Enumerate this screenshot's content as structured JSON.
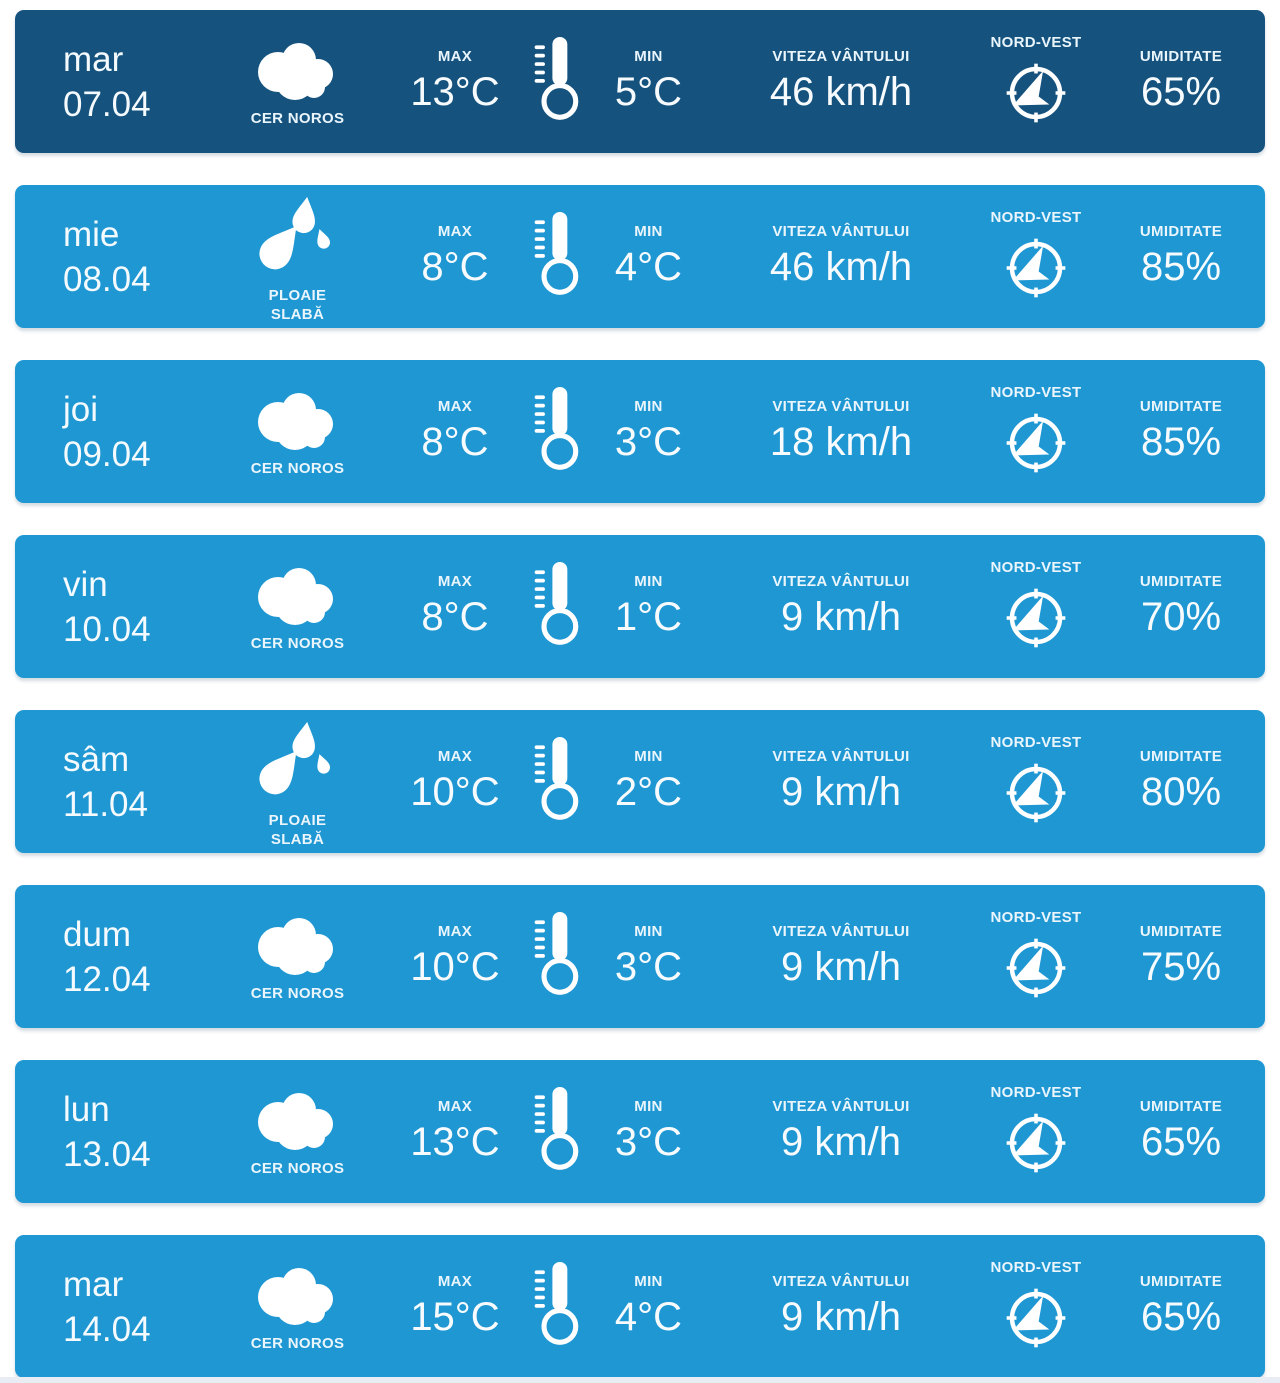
{
  "colors": {
    "row_dark": "#15537E",
    "row_light": "#1E97D3",
    "text": "#ffffff"
  },
  "labels": {
    "max": "MAX",
    "min": "MIN",
    "wind": "VITEZA VÂNTULUI",
    "humidity": "UMIDITATE"
  },
  "rows": [
    {
      "variant": "dark",
      "day": "mar",
      "date": "07.04",
      "condition_icon": "cloud",
      "condition_lines": [
        "CER NOROS"
      ],
      "max": "13°C",
      "min": "5°C",
      "wind_speed": "46 km/h",
      "wind_direction": "NORD-VEST",
      "humidity": "65%"
    },
    {
      "variant": "light",
      "day": "mie",
      "date": "08.04",
      "condition_icon": "rain",
      "condition_lines": [
        "PLOAIE",
        "SLABĂ"
      ],
      "max": "8°C",
      "min": "4°C",
      "wind_speed": "46 km/h",
      "wind_direction": "NORD-VEST",
      "humidity": "85%"
    },
    {
      "variant": "light",
      "day": "joi",
      "date": "09.04",
      "condition_icon": "cloud",
      "condition_lines": [
        "CER NOROS"
      ],
      "max": "8°C",
      "min": "3°C",
      "wind_speed": "18 km/h",
      "wind_direction": "NORD-VEST",
      "humidity": "85%"
    },
    {
      "variant": "light",
      "day": "vin",
      "date": "10.04",
      "condition_icon": "cloud",
      "condition_lines": [
        "CER NOROS"
      ],
      "max": "8°C",
      "min": "1°C",
      "wind_speed": "9 km/h",
      "wind_direction": "NORD-VEST",
      "humidity": "70%"
    },
    {
      "variant": "light",
      "day": "sâm",
      "date": "11.04",
      "condition_icon": "rain",
      "condition_lines": [
        "PLOAIE",
        "SLABĂ"
      ],
      "max": "10°C",
      "min": "2°C",
      "wind_speed": "9 km/h",
      "wind_direction": "NORD-VEST",
      "humidity": "80%"
    },
    {
      "variant": "light",
      "day": "dum",
      "date": "12.04",
      "condition_icon": "cloud",
      "condition_lines": [
        "CER NOROS"
      ],
      "max": "10°C",
      "min": "3°C",
      "wind_speed": "9 km/h",
      "wind_direction": "NORD-VEST",
      "humidity": "75%"
    },
    {
      "variant": "light",
      "day": "lun",
      "date": "13.04",
      "condition_icon": "cloud",
      "condition_lines": [
        "CER NOROS"
      ],
      "max": "13°C",
      "min": "3°C",
      "wind_speed": "9 km/h",
      "wind_direction": "NORD-VEST",
      "humidity": "65%"
    },
    {
      "variant": "light",
      "day": "mar",
      "date": "14.04",
      "condition_icon": "cloud",
      "condition_lines": [
        "CER NOROS"
      ],
      "max": "15°C",
      "min": "4°C",
      "wind_speed": "9 km/h",
      "wind_direction": "NORD-VEST",
      "humidity": "65%"
    }
  ]
}
